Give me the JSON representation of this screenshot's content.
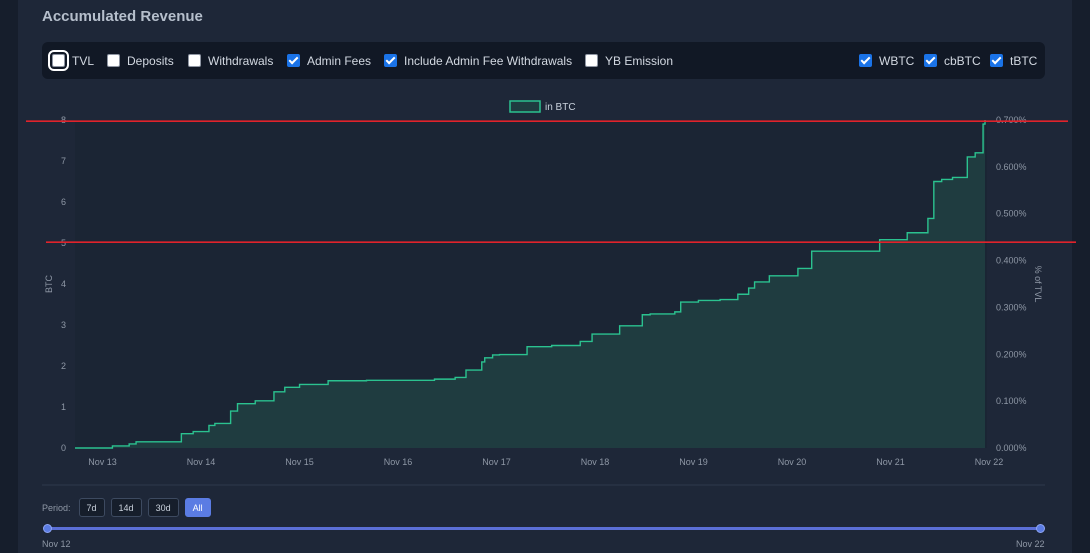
{
  "header": {
    "title": "Accumulated Revenue"
  },
  "filters": [
    {
      "label": "TVL",
      "checked": false,
      "focused": true
    },
    {
      "label": "Deposits",
      "checked": false
    },
    {
      "label": "Withdrawals",
      "checked": false
    },
    {
      "label": "Admin Fees",
      "checked": true
    },
    {
      "label": "Include Admin Fee Withdrawals",
      "checked": true
    },
    {
      "label": "YB Emission",
      "checked": false
    }
  ],
  "assets": [
    {
      "label": "WBTC",
      "checked": true
    },
    {
      "label": "cbBTC",
      "checked": true
    },
    {
      "label": "tBTC",
      "checked": true
    }
  ],
  "colors": {
    "line": "#2bc28f",
    "fill": "#1f3c40",
    "plot_bg": "#1b2534",
    "annotation": "#e0232b",
    "accent": "#5b7ce3"
  },
  "chart_data": {
    "type": "area",
    "legend": [
      "in BTC"
    ],
    "legend_position": "top-center",
    "ylabel": "BTC",
    "y2label": "% of TVL",
    "ylim": [
      0,
      8
    ],
    "y2lim": [
      0,
      0.7
    ],
    "y_ticks": [
      "0",
      "1",
      "2",
      "3",
      "4",
      "5",
      "6",
      "7",
      "8"
    ],
    "y2_ticks": [
      "0.000%",
      "0.100%",
      "0.200%",
      "0.300%",
      "0.400%",
      "0.500%",
      "0.600%",
      "0.700%"
    ],
    "x_ticks": [
      "Nov 13",
      "Nov 14",
      "Nov 15",
      "Nov 16",
      "Nov 17",
      "Nov 18",
      "Nov 19",
      "Nov 20",
      "Nov 21",
      "Nov 22"
    ],
    "xlim": [
      0,
      9.26
    ],
    "grid": false,
    "series": [
      {
        "name": "in BTC",
        "x": [
          0,
          0.35,
          0.38,
          0.55,
          0.62,
          1.08,
          1.2,
          1.36,
          1.42,
          1.58,
          1.65,
          1.83,
          2.02,
          2.13,
          2.28,
          2.57,
          2.96,
          3.2,
          3.58,
          3.65,
          3.86,
          3.97,
          4.13,
          4.16,
          4.24,
          4.31,
          4.59,
          4.84,
          4.96,
          5.13,
          5.25,
          5.53,
          5.76,
          5.84,
          6.09,
          6.15,
          6.33,
          6.51,
          6.55,
          6.73,
          6.84,
          6.9,
          7.05,
          7.17,
          7.34,
          7.48,
          7.96,
          8.17,
          8.28,
          8.45,
          8.66,
          8.72,
          8.8,
          8.91,
          9.06,
          9.14,
          9.22,
          9.24
        ],
        "y": [
          0,
          0,
          0.05,
          0.1,
          0.15,
          0.35,
          0.4,
          0.55,
          0.6,
          0.9,
          1.08,
          1.15,
          1.37,
          1.48,
          1.55,
          1.64,
          1.65,
          1.65,
          1.65,
          1.68,
          1.72,
          1.9,
          2.1,
          2.2,
          2.27,
          2.28,
          2.47,
          2.5,
          2.5,
          2.6,
          2.78,
          2.98,
          3.25,
          3.27,
          3.32,
          3.56,
          3.6,
          3.6,
          3.62,
          3.75,
          3.9,
          4.05,
          4.2,
          4.2,
          4.38,
          4.8,
          4.8,
          5.08,
          5.08,
          5.25,
          5.6,
          6.5,
          6.55,
          6.6,
          7.1,
          7.2,
          7.9,
          8.0
        ]
      }
    ]
  },
  "annotations": {
    "lines": [
      {
        "type": "horizontal",
        "y": 7.97
      },
      {
        "type": "horizontal",
        "y": 5.02
      }
    ]
  },
  "period": {
    "label": "Period:",
    "options": [
      "7d",
      "14d",
      "30d",
      "All"
    ],
    "active": "All"
  },
  "range": {
    "start": "Nov 12",
    "end": "Nov 22"
  }
}
